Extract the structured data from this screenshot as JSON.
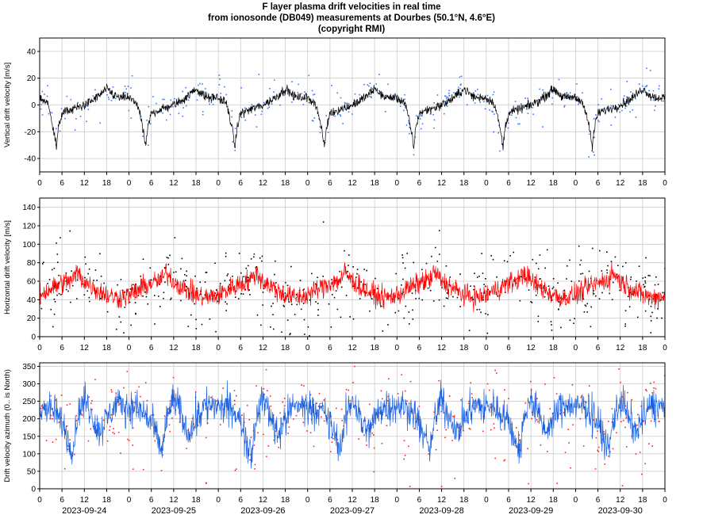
{
  "title": {
    "line1": "F layer plasma drift velocities in real time",
    "line2": "from ionosonde (DB049) measurements at Dourbes (50.1°N, 4.6°E)",
    "line3": "(copyright RMI)"
  },
  "colors": {
    "vertical_scatter": "#3377ff",
    "vertical_line": "#000000",
    "horizontal_scatter": "#000000",
    "horizontal_line": "#ff0000",
    "azimuth_scatter": "#ff2020",
    "azimuth_line": "#1a5fe0",
    "grid": "#cccccc"
  },
  "chart_data": [
    {
      "type": "scatter",
      "ylabel": "Vertical drift velocity [m/s]",
      "ylim": [
        -50,
        50
      ],
      "yticks": [
        -40,
        -20,
        0,
        20,
        40
      ],
      "xlim_hours": [
        0,
        168
      ],
      "xtick_labels": [
        "0",
        "6",
        "12",
        "18",
        "0",
        "6",
        "12",
        "18",
        "0",
        "6",
        "12",
        "18",
        "0",
        "6",
        "12",
        "18",
        "0",
        "6",
        "12",
        "18",
        "0",
        "6",
        "12",
        "18",
        "0",
        "6",
        "12",
        "18",
        "0"
      ],
      "grid": true,
      "series": [
        {
          "kind": "points",
          "description_color": "blue"
        },
        {
          "kind": "line",
          "description_color": "black",
          "daily_profile_hours": [
            0,
            2,
            3,
            4,
            4.5,
            5,
            6,
            8,
            10,
            12,
            14,
            16,
            18,
            19,
            20,
            22,
            23,
            24
          ],
          "daily_profile_values": [
            5,
            2,
            -8,
            -22,
            -32,
            -18,
            -6,
            -4,
            -2,
            0,
            3,
            7,
            12,
            10,
            7,
            5,
            6,
            5
          ]
        }
      ]
    },
    {
      "type": "scatter",
      "ylabel": "Horizontal drift velocity [m/s]",
      "ylim": [
        0,
        150
      ],
      "yticks": [
        0,
        20,
        40,
        60,
        80,
        100,
        120,
        140
      ],
      "xlim_hours": [
        0,
        168
      ],
      "xtick_labels": [
        "0",
        "6",
        "12",
        "18",
        "0",
        "6",
        "12",
        "18",
        "0",
        "6",
        "12",
        "18",
        "0",
        "6",
        "12",
        "18",
        "0",
        "6",
        "12",
        "18",
        "0",
        "6",
        "12",
        "18",
        "0",
        "6",
        "12",
        "18",
        "0"
      ],
      "grid": true,
      "series": [
        {
          "kind": "points",
          "description_color": "black"
        },
        {
          "kind": "line",
          "description_color": "red",
          "daily_profile_hours": [
            0,
            3,
            6,
            9,
            10,
            12,
            15,
            18,
            21,
            24
          ],
          "daily_profile_values": [
            45,
            52,
            58,
            62,
            70,
            60,
            52,
            45,
            42,
            45
          ]
        }
      ]
    },
    {
      "type": "scatter",
      "ylabel": "Drift velocity azimuth (0.. is North)",
      "ylim": [
        0,
        360
      ],
      "yticks": [
        0,
        50,
        100,
        150,
        200,
        250,
        300,
        350
      ],
      "xlim_hours": [
        0,
        168
      ],
      "xtick_labels": [
        "0",
        "6",
        "12",
        "18",
        "0",
        "6",
        "12",
        "18",
        "0",
        "6",
        "12",
        "18",
        "0",
        "6",
        "12",
        "18",
        "0",
        "6",
        "12",
        "18",
        "0",
        "6",
        "12",
        "18",
        "0",
        "6",
        "12",
        "18",
        "0"
      ],
      "date_labels": [
        "2023-09-24",
        "2023-09-25",
        "2023-09-26",
        "2023-09-27",
        "2023-09-28",
        "2023-09-29",
        "2023-09-30"
      ],
      "grid": true,
      "series": [
        {
          "kind": "points",
          "description_color": "red"
        },
        {
          "kind": "line",
          "description_color": "blue",
          "daily_profile_hours": [
            0,
            2,
            4,
            6,
            8,
            9,
            10,
            12,
            14,
            16,
            18,
            20,
            22,
            24
          ],
          "daily_profile_values": [
            230,
            235,
            220,
            190,
            130,
            110,
            190,
            260,
            210,
            160,
            200,
            235,
            240,
            230
          ]
        }
      ]
    }
  ]
}
